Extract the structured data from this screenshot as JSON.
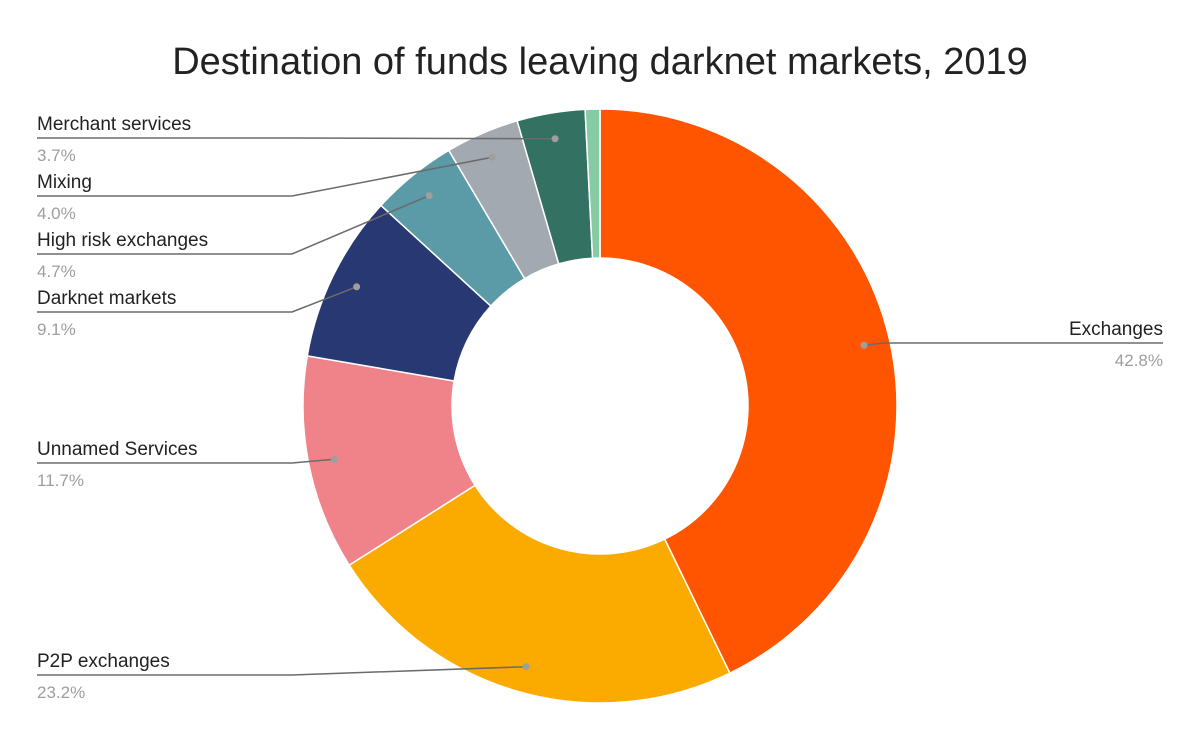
{
  "chart_data": {
    "type": "pie",
    "variant": "donut",
    "title": "Destination of funds leaving darknet markets, 2019",
    "slices": [
      {
        "label": "Exchanges",
        "value": 42.8,
        "value_label": "42.8%",
        "color": "#ff5500"
      },
      {
        "label": "P2P exchanges",
        "value": 23.2,
        "value_label": "23.2%",
        "color": "#fbaa00"
      },
      {
        "label": "Unnamed Services",
        "value": 11.7,
        "value_label": "11.7%",
        "color": "#f0838a"
      },
      {
        "label": "Darknet markets",
        "value": 9.1,
        "value_label": "9.1%",
        "color": "#283872"
      },
      {
        "label": "High risk exchanges",
        "value": 4.7,
        "value_label": "4.7%",
        "color": "#5b9aa7"
      },
      {
        "label": "Mixing",
        "value": 4.0,
        "value_label": "4.0%",
        "color": "#a2a9b1"
      },
      {
        "label": "Merchant services",
        "value": 3.7,
        "value_label": "3.7%",
        "color": "#337162"
      },
      {
        "label": "",
        "value": 0.8,
        "value_label": "",
        "color": "#87cba4"
      }
    ],
    "start": "top",
    "direction": "clockwise",
    "legend": "none",
    "labels": "leader lines"
  }
}
